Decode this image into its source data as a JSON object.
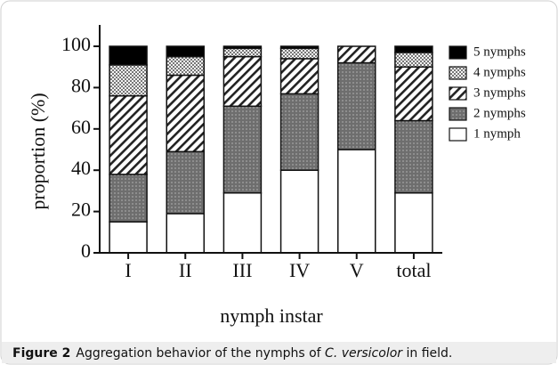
{
  "chart_data": {
    "type": "stacked_bar",
    "xlabel": "nymph instar",
    "ylabel": "proportion (%)",
    "categories": [
      "I",
      "II",
      "III",
      "IV",
      "V",
      "total"
    ],
    "series": [
      {
        "name": "1 nymph",
        "color": "#ffffff",
        "pattern": "solid",
        "values": [
          15,
          19,
          29,
          40,
          50,
          29
        ]
      },
      {
        "name": "2 nymphs",
        "color": "#6e6e6e",
        "pattern": "dots",
        "values": [
          23,
          30,
          42,
          37,
          42,
          35
        ]
      },
      {
        "name": "3 nymphs",
        "color": "#ffffff",
        "pattern": "hatch",
        "values": [
          38,
          37,
          24,
          17,
          8,
          26
        ]
      },
      {
        "name": "4 nymphs",
        "color": "#d8d8d8",
        "pattern": "checker",
        "values": [
          15,
          9,
          4,
          5,
          0,
          7
        ]
      },
      {
        "name": "5 nymphs",
        "color": "#000000",
        "pattern": "solid",
        "values": [
          9,
          5,
          1,
          1,
          0,
          3
        ]
      }
    ],
    "ylim": [
      0,
      100
    ],
    "yticks": [
      0,
      20,
      40,
      60,
      80,
      100
    ],
    "legend": "upper right"
  },
  "caption": {
    "label": "Figure 2",
    "text": "Aggregation behavior of the nymphs of ",
    "species": "C. versicolor",
    "tail": " in field."
  }
}
